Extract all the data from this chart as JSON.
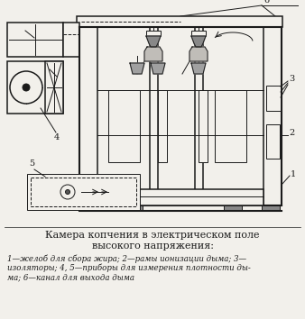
{
  "bg_color": "#f2f0eb",
  "line_color": "#1a1a1a",
  "title_line1": "Камера копчения в электрическом поле",
  "title_line2": "высокого напряжения:",
  "caption": "1—желоб для сбора жира; 2—рамы ионизации дыма; 3—\nизоляторы; 4, 5—приборы для измерения плотности ды-\nма; 6—канал для выхода дыма",
  "title_fontsize": 8.0,
  "caption_fontsize": 6.2,
  "fig_width": 3.38,
  "fig_height": 3.54
}
